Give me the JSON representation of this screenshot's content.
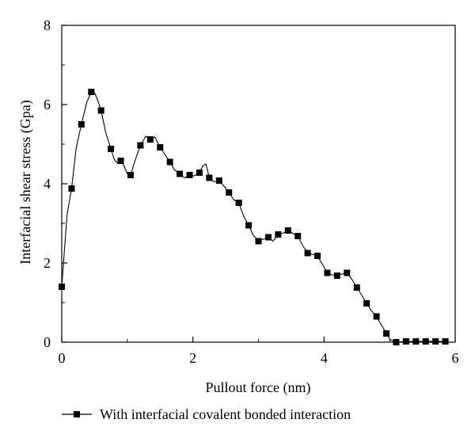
{
  "chart_data": {
    "type": "line",
    "title": "",
    "xlabel": "Pullout force (nm)",
    "ylabel": "Interfacial shear stress (Gpa)",
    "xlim": [
      0,
      6
    ],
    "ylim": [
      0,
      8
    ],
    "x_ticks": [
      "0",
      "2",
      "4",
      "6"
    ],
    "y_ticks": [
      "0",
      "2",
      "4",
      "6",
      "8"
    ],
    "grid": false,
    "legend_position": "bottom",
    "series": [
      {
        "name": "With interfacial covalent bonded interaction",
        "color": "#000000",
        "marker": "square",
        "markers": [
          [
            0,
            1.4
          ],
          [
            0.15,
            3.88
          ],
          [
            0.3,
            5.5
          ],
          [
            0.45,
            6.32
          ],
          [
            0.6,
            5.85
          ],
          [
            0.75,
            4.88
          ],
          [
            0.9,
            4.58
          ],
          [
            1.05,
            4.22
          ],
          [
            1.2,
            4.97
          ],
          [
            1.35,
            5.12
          ],
          [
            1.5,
            4.92
          ],
          [
            1.65,
            4.55
          ],
          [
            1.8,
            4.25
          ],
          [
            1.95,
            4.22
          ],
          [
            2.1,
            4.28
          ],
          [
            2.25,
            4.15
          ],
          [
            2.4,
            4.08
          ],
          [
            2.55,
            3.78
          ],
          [
            2.7,
            3.52
          ],
          [
            2.85,
            2.95
          ],
          [
            3.0,
            2.55
          ],
          [
            3.15,
            2.65
          ],
          [
            3.3,
            2.72
          ],
          [
            3.45,
            2.82
          ],
          [
            3.6,
            2.68
          ],
          [
            3.75,
            2.25
          ],
          [
            3.9,
            2.18
          ],
          [
            4.05,
            1.75
          ],
          [
            4.2,
            1.68
          ],
          [
            4.35,
            1.75
          ],
          [
            4.5,
            1.38
          ],
          [
            4.65,
            0.98
          ],
          [
            4.8,
            0.65
          ],
          [
            4.95,
            0.22
          ],
          [
            5.1,
            0.0
          ],
          [
            5.25,
            0.02
          ],
          [
            5.4,
            0.02
          ],
          [
            5.55,
            0.02
          ],
          [
            5.7,
            0.02
          ],
          [
            5.85,
            0.02
          ]
        ],
        "curve": [
          [
            0,
            1.4
          ],
          [
            0.08,
            3.2
          ],
          [
            0.15,
            3.88
          ],
          [
            0.22,
            4.9
          ],
          [
            0.3,
            5.5
          ],
          [
            0.38,
            6.05
          ],
          [
            0.45,
            6.32
          ],
          [
            0.5,
            6.3
          ],
          [
            0.55,
            6.1
          ],
          [
            0.6,
            5.85
          ],
          [
            0.67,
            5.3
          ],
          [
            0.75,
            4.88
          ],
          [
            0.8,
            4.62
          ],
          [
            0.85,
            4.52
          ],
          [
            0.9,
            4.58
          ],
          [
            0.95,
            4.45
          ],
          [
            1.0,
            4.25
          ],
          [
            1.05,
            4.22
          ],
          [
            1.12,
            4.6
          ],
          [
            1.2,
            4.97
          ],
          [
            1.28,
            5.2
          ],
          [
            1.35,
            5.12
          ],
          [
            1.42,
            5.18
          ],
          [
            1.5,
            4.92
          ],
          [
            1.57,
            4.75
          ],
          [
            1.65,
            4.55
          ],
          [
            1.72,
            4.35
          ],
          [
            1.8,
            4.25
          ],
          [
            1.87,
            4.15
          ],
          [
            1.95,
            4.22
          ],
          [
            2.02,
            4.2
          ],
          [
            2.1,
            4.28
          ],
          [
            2.15,
            4.45
          ],
          [
            2.2,
            4.5
          ],
          [
            2.25,
            4.15
          ],
          [
            2.32,
            4.05
          ],
          [
            2.4,
            4.08
          ],
          [
            2.47,
            3.95
          ],
          [
            2.55,
            3.78
          ],
          [
            2.62,
            3.6
          ],
          [
            2.7,
            3.52
          ],
          [
            2.77,
            3.2
          ],
          [
            2.85,
            2.95
          ],
          [
            2.92,
            2.7
          ],
          [
            3.0,
            2.55
          ],
          [
            3.07,
            2.6
          ],
          [
            3.15,
            2.65
          ],
          [
            3.22,
            2.55
          ],
          [
            3.3,
            2.72
          ],
          [
            3.37,
            2.75
          ],
          [
            3.45,
            2.82
          ],
          [
            3.52,
            2.75
          ],
          [
            3.6,
            2.68
          ],
          [
            3.67,
            2.45
          ],
          [
            3.75,
            2.25
          ],
          [
            3.82,
            2.22
          ],
          [
            3.9,
            2.18
          ],
          [
            3.97,
            1.98
          ],
          [
            4.05,
            1.75
          ],
          [
            4.12,
            1.7
          ],
          [
            4.2,
            1.68
          ],
          [
            4.27,
            1.72
          ],
          [
            4.35,
            1.75
          ],
          [
            4.42,
            1.6
          ],
          [
            4.5,
            1.38
          ],
          [
            4.57,
            1.2
          ],
          [
            4.65,
            0.98
          ],
          [
            4.72,
            0.8
          ],
          [
            4.8,
            0.65
          ],
          [
            4.87,
            0.45
          ],
          [
            4.95,
            0.22
          ],
          [
            5.02,
            0.05
          ],
          [
            5.1,
            0.0
          ],
          [
            5.25,
            0.02
          ],
          [
            5.4,
            0.02
          ],
          [
            5.55,
            0.02
          ],
          [
            5.7,
            0.02
          ],
          [
            5.85,
            0.02
          ]
        ]
      }
    ]
  }
}
